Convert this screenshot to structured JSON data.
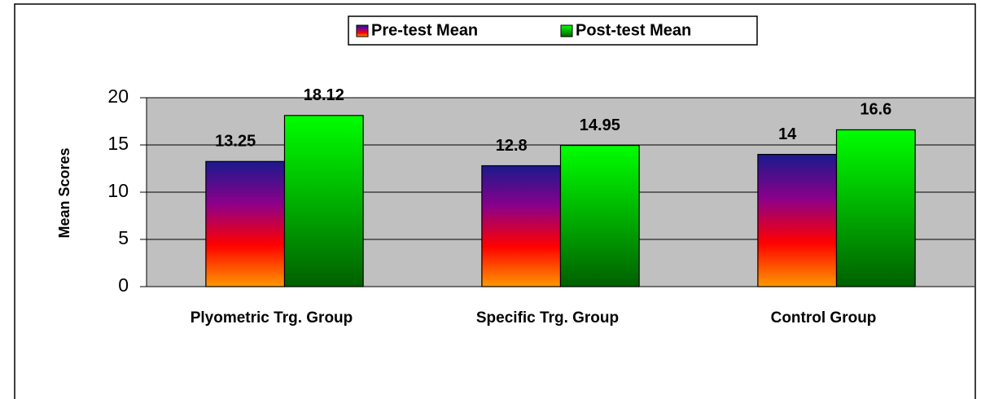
{
  "chart_data": {
    "type": "bar",
    "y_axis_label": "Mean Scores",
    "categories": [
      "Plyometric Trg. Group",
      "Specific Trg. Group",
      "Control Group"
    ],
    "series": [
      {
        "name": "Pre-test Mean",
        "colors": [
          "#1a1a8c",
          "#8b008b",
          "#ff0000",
          "#ff9900"
        ],
        "values": [
          13.25,
          12.8,
          14
        ]
      },
      {
        "name": "Post-test Mean",
        "colors": [
          "#00ff00",
          "#00b000",
          "#006000"
        ],
        "values": [
          18.12,
          14.95,
          16.6
        ]
      }
    ],
    "ylim": [
      0,
      20
    ],
    "yticks": [
      0,
      5,
      10,
      15,
      20
    ],
    "grid": true,
    "plot_background": "#c0c0c0",
    "legend": "top"
  }
}
